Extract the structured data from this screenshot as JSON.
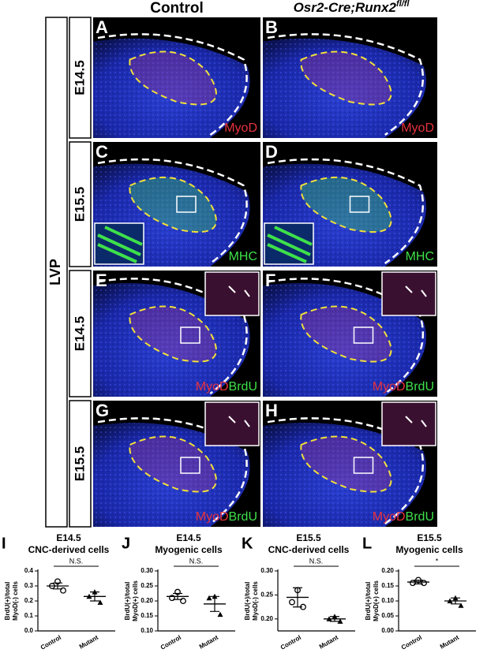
{
  "header": {
    "control": "Control",
    "mutant": "Osr2-Cre;Runx2",
    "mutant_sup": "fl/fl"
  },
  "side_label": "LVP",
  "rows": [
    "E14.5",
    "E15.5",
    "E14.5",
    "E15.5"
  ],
  "panels": [
    {
      "letter": "A",
      "stains": [
        {
          "text": "MyoD",
          "color": "#e8323c"
        }
      ]
    },
    {
      "letter": "B",
      "stains": [
        {
          "text": "MyoD",
          "color": "#e8323c"
        }
      ]
    },
    {
      "letter": "C",
      "stains": [
        {
          "text": "MHC",
          "color": "#3ee04a"
        }
      ]
    },
    {
      "letter": "D",
      "stains": [
        {
          "text": "MHC",
          "color": "#3ee04a"
        }
      ]
    },
    {
      "letter": "E",
      "stains": [
        {
          "text": "MyoD",
          "color": "#e8323c"
        },
        {
          "text": "BrdU",
          "color": "#3ee04a"
        }
      ]
    },
    {
      "letter": "F",
      "stains": [
        {
          "text": "MyoD",
          "color": "#e8323c"
        },
        {
          "text": "BrdU",
          "color": "#3ee04a"
        }
      ]
    },
    {
      "letter": "G",
      "stains": [
        {
          "text": "MyoD",
          "color": "#e8323c"
        },
        {
          "text": "BrdU",
          "color": "#3ee04a"
        }
      ]
    },
    {
      "letter": "H",
      "stains": [
        {
          "text": "MyoD",
          "color": "#e8323c"
        },
        {
          "text": "BrdU",
          "color": "#3ee04a"
        }
      ]
    }
  ],
  "plots": [
    {
      "type": "scatter",
      "letter": "I",
      "title": [
        "E14.5",
        "CNC-derived cells"
      ],
      "ylabel": [
        "BrdU(+)/total",
        "MyoD(-) cells"
      ],
      "categories": [
        "Control",
        "Mutant"
      ],
      "markers": [
        "circle",
        "triangle"
      ],
      "points": [
        [
          0.33,
          0.3,
          0.27
        ],
        [
          0.26,
          0.23,
          0.19
        ]
      ],
      "means": [
        0.3,
        0.23
      ],
      "errors": [
        0.02,
        0.03
      ],
      "significance": "N.S.",
      "ylim": [
        0,
        0.4
      ],
      "yticks": [
        {
          "value": 0,
          "label": "0.0"
        },
        0.1,
        0.2,
        0.3,
        0.4
      ]
    },
    {
      "type": "scatter",
      "letter": "J",
      "title": [
        "E14.5",
        "Myogenic cells"
      ],
      "ylabel": [
        "BrdU(+)/total",
        "MyoD(+) cells"
      ],
      "categories": [
        "Control",
        "Mutant"
      ],
      "markers": [
        "circle",
        "triangle"
      ],
      "points": [
        [
          0.23,
          0.21,
          0.2
        ],
        [
          0.215,
          0.21,
          0.155
        ]
      ],
      "means": [
        0.215,
        0.19
      ],
      "errors": [
        0.01,
        0.025
      ],
      "significance": "N.S.",
      "ylim": [
        0.1,
        0.3
      ],
      "yticks": [
        {
          "value": 0.1,
          "label": "0.10"
        },
        0.15,
        {
          "value": 0.2,
          "label": "0.20"
        },
        0.25,
        {
          "value": 0.3,
          "label": "0.30"
        }
      ]
    },
    {
      "type": "scatter",
      "letter": "K",
      "title": [
        "E15.5",
        "CNC-derived cells"
      ],
      "ylabel": [
        "BrdU(+)/total",
        "MyoD(-) cells"
      ],
      "categories": [
        "Control",
        "Mutant"
      ],
      "markers": [
        "circle",
        "triangle"
      ],
      "points": [
        [
          0.26,
          0.235,
          0.225
        ],
        [
          0.205,
          0.2,
          0.195
        ]
      ],
      "means": [
        0.245,
        0.2
      ],
      "errors": [
        0.02,
        0.005
      ],
      "significance": "N.S.",
      "ylim": [
        0.175,
        0.3
      ],
      "yticks": [
        {
          "value": 0.2,
          "label": "0.20"
        },
        0.25,
        {
          "value": 0.3,
          "label": "0.30"
        }
      ]
    },
    {
      "type": "scatter",
      "letter": "L",
      "title": [
        "E15.5",
        "Myogenic cells"
      ],
      "ylabel": [
        "BrdU(+)/total",
        "MyoD(+) cells"
      ],
      "categories": [
        "Control",
        "Mutant"
      ],
      "markers": [
        "circle",
        "triangle"
      ],
      "points": [
        [
          0.17,
          0.16,
          0.16
        ],
        [
          0.11,
          0.1,
          0.085
        ]
      ],
      "means": [
        0.163,
        0.1
      ],
      "errors": [
        0.006,
        0.01
      ],
      "significance": "*",
      "ylim": [
        0,
        0.2
      ],
      "yticks": [
        {
          "value": 0,
          "label": "0.00"
        },
        0.05,
        {
          "value": 0.1,
          "label": "0.10"
        },
        0.15,
        {
          "value": 0.2,
          "label": "0.20"
        }
      ]
    }
  ]
}
